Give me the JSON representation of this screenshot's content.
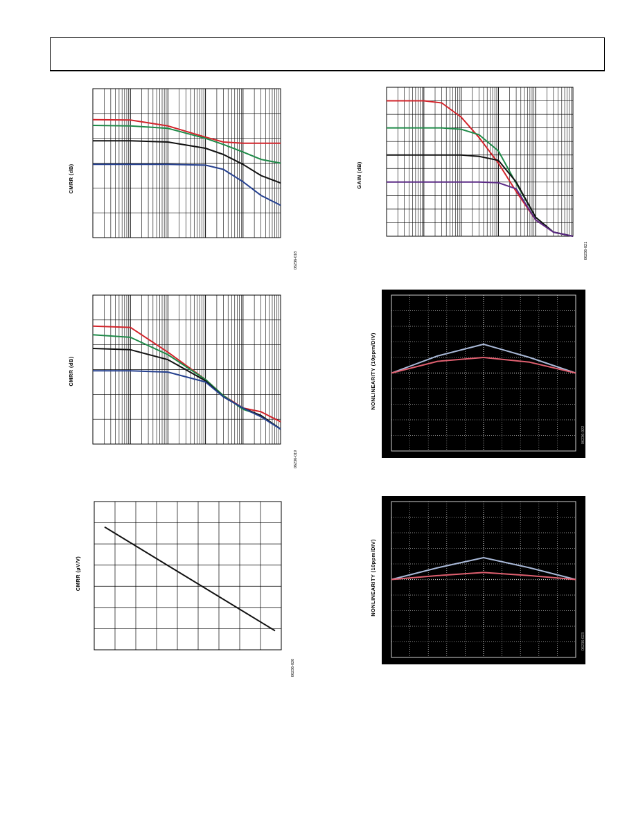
{
  "page": {
    "header": ""
  },
  "figures": [
    {
      "id": "fig1",
      "ylabel": "CMRR (dB)",
      "figure_id": "06236-018"
    },
    {
      "id": "fig2",
      "ylabel": "GAIN (dB)",
      "figure_id": "06236-021"
    },
    {
      "id": "fig3",
      "ylabel": "CMRR (dB)",
      "figure_id": "06236-019"
    },
    {
      "id": "fig4",
      "ylabel": "NONLINEARITY (10ppm/DIV)",
      "figure_id": "06236-022"
    },
    {
      "id": "fig5",
      "ylabel": "CMRR (µV/V)",
      "figure_id": "06236-020"
    },
    {
      "id": "fig6",
      "ylabel": "NONLINEARITY (10ppm/DIV)",
      "figure_id": "06236-023"
    }
  ],
  "chart_data": [
    {
      "type": "line",
      "xscale": "log",
      "ylabel": "CMRR (dB)",
      "ylim": [
        0,
        6
      ],
      "x": [
        1,
        10,
        100,
        1000,
        3000,
        10000,
        30000,
        100000
      ],
      "series": [
        {
          "color": "#d2232a",
          "values": [
            4.75,
            4.74,
            4.5,
            4.05,
            3.85,
            3.8,
            3.8,
            3.8
          ]
        },
        {
          "color": "#1e8a48",
          "values": [
            4.52,
            4.5,
            4.4,
            4.0,
            3.75,
            3.45,
            3.15,
            3.0
          ]
        },
        {
          "color": "#111111",
          "values": [
            3.9,
            3.9,
            3.85,
            3.6,
            3.35,
            2.95,
            2.5,
            2.2
          ]
        },
        {
          "color": "#25408f",
          "values": [
            2.95,
            2.95,
            2.95,
            2.92,
            2.75,
            2.25,
            1.7,
            1.3
          ]
        }
      ]
    },
    {
      "type": "line",
      "xscale": "log",
      "ylabel": "GAIN (dB)",
      "ylim": [
        0,
        11
      ],
      "x": [
        1,
        10,
        30,
        100,
        300,
        1000,
        3000,
        10000,
        30000,
        100000
      ],
      "series": [
        {
          "color": "#d2232a",
          "values": [
            10.0,
            10.0,
            9.85,
            8.8,
            7.3,
            5.4,
            3.3,
            1.2,
            0.3,
            0.0
          ]
        },
        {
          "color": "#1e8a48",
          "values": [
            8.0,
            8.0,
            8.0,
            7.9,
            7.5,
            6.3,
            3.9,
            1.4,
            0.3,
            0.0
          ]
        },
        {
          "color": "#111111",
          "values": [
            6.0,
            6.0,
            6.0,
            6.0,
            5.9,
            5.6,
            4.0,
            1.4,
            0.3,
            0.0
          ]
        },
        {
          "color": "#5b2a86",
          "values": [
            4.0,
            4.0,
            4.0,
            4.0,
            4.0,
            3.95,
            3.5,
            1.2,
            0.3,
            0.0
          ]
        }
      ]
    },
    {
      "type": "line",
      "xscale": "log",
      "ylabel": "CMRR (dB)",
      "ylim": [
        0,
        6
      ],
      "x": [
        1,
        10,
        100,
        1000,
        3000,
        10000,
        30000,
        100000
      ],
      "series": [
        {
          "color": "#d2232a",
          "values": [
            4.75,
            4.7,
            3.7,
            2.6,
            1.95,
            1.45,
            1.3,
            0.9
          ]
        },
        {
          "color": "#1e8a48",
          "values": [
            4.4,
            4.3,
            3.6,
            2.6,
            1.95,
            1.4,
            1.15,
            0.6
          ]
        },
        {
          "color": "#111111",
          "values": [
            3.85,
            3.8,
            3.4,
            2.55,
            1.9,
            1.45,
            1.15,
            0.6
          ]
        },
        {
          "color": "#25408f",
          "values": [
            2.95,
            2.95,
            2.9,
            2.5,
            1.9,
            1.45,
            1.1,
            0.6
          ]
        }
      ]
    },
    {
      "type": "line",
      "ylabel": "NONLINEARITY (10ppm/DIV)",
      "ylim": [
        -5,
        5
      ],
      "xlim": [
        -5,
        5
      ],
      "background": "#000000",
      "grid": true,
      "series": [
        {
          "color": "#a9b9d8",
          "x": [
            -5,
            -2.5,
            0,
            2.5,
            5
          ],
          "values": [
            0,
            1.1,
            1.85,
            1.0,
            0
          ]
        },
        {
          "color": "#e06070",
          "x": [
            -5,
            -2.5,
            0,
            2.5,
            5
          ],
          "values": [
            0,
            0.75,
            1.0,
            0.7,
            0
          ]
        }
      ]
    },
    {
      "type": "line",
      "ylabel": "CMRR (µV/V)",
      "xlim": [
        0,
        9
      ],
      "ylim": [
        0,
        7
      ],
      "grid": true,
      "series": [
        {
          "color": "#111111",
          "x": [
            0.5,
            8.7
          ],
          "values": [
            5.8,
            0.9
          ]
        }
      ]
    },
    {
      "type": "line",
      "ylabel": "NONLINEARITY (10ppm/DIV)",
      "ylim": [
        -5,
        5
      ],
      "xlim": [
        -5,
        5
      ],
      "background": "#000000",
      "grid": true,
      "series": [
        {
          "color": "#a9b9d8",
          "x": [
            -5,
            -2.5,
            0,
            2.5,
            5
          ],
          "values": [
            0,
            0.75,
            1.4,
            0.75,
            0
          ]
        },
        {
          "color": "#e06070",
          "x": [
            -5,
            -2.5,
            0,
            2.5,
            5
          ],
          "values": [
            0,
            0.25,
            0.45,
            0.25,
            0
          ]
        }
      ]
    }
  ]
}
